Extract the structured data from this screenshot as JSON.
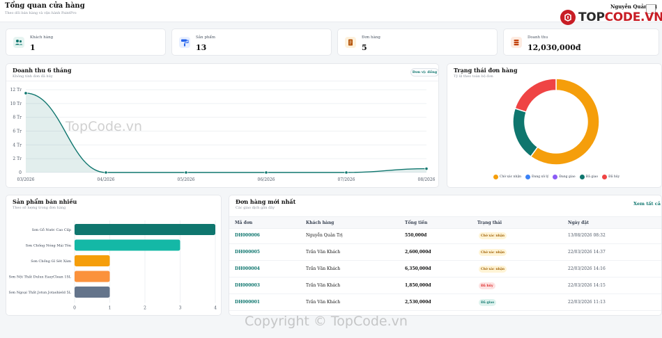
{
  "header": {
    "title": "Tổng quan cửa hàng",
    "subtitle": "Theo dõi bán hàng và vận hành PaintPro",
    "user_name": "Nguyễn Quản Trị"
  },
  "brand": {
    "prefix": "TOP",
    "suffix": "CODE.VN"
  },
  "stats": [
    {
      "label": "Khách hàng",
      "value": "1",
      "icon": "users-icon",
      "color": "#0f766e",
      "bg": "#e6f4f1"
    },
    {
      "label": "Sản phẩm",
      "value": "13",
      "icon": "paint-roller-icon",
      "color": "#2563eb",
      "bg": "#e8efff"
    },
    {
      "label": "Đơn hàng",
      "value": "5",
      "icon": "receipt-icon",
      "color": "#b45309",
      "bg": "#fdf1dc"
    },
    {
      "label": "Doanh thu",
      "value": "12,030,000đ",
      "icon": "coins-icon",
      "color": "#c2410c",
      "bg": "#fdebe1"
    }
  ],
  "revenue": {
    "title": "Doanh thu 6 tháng",
    "subtitle": "Không tính đơn đã hủy",
    "unit_button": "Đơn vị: đồng",
    "chart_data": {
      "type": "area",
      "x": [
        "03/2026",
        "04/2026",
        "05/2026",
        "06/2026",
        "07/2026",
        "08/2026"
      ],
      "values": [
        11.5,
        0,
        0,
        0,
        0,
        0.55
      ],
      "y_ticks": [
        "0",
        "2 Tr",
        "4 Tr",
        "6 Tr",
        "8 Tr",
        "10 Tr",
        "12 Tr"
      ],
      "ylim": [
        0,
        12
      ],
      "color": "#0f766e"
    }
  },
  "order_status": {
    "title": "Trạng thái đơn hàng",
    "subtitle": "Tỷ lệ theo toàn bộ đơn",
    "chart_data": {
      "type": "pie",
      "labels": [
        "Chờ xác nhận",
        "Đang xử lý",
        "Đang giao",
        "Đã giao",
        "Đã hủy"
      ],
      "values": [
        3,
        0,
        0,
        1,
        1
      ],
      "colors": [
        "#f59e0b",
        "#3b82f6",
        "#8b5cf6",
        "#0f766e",
        "#ef4444"
      ]
    }
  },
  "best_sellers": {
    "title": "Sản phẩm bán nhiều",
    "subtitle": "Theo số lượng trong đơn hàng",
    "chart_data": {
      "type": "bar",
      "orientation": "horizontal",
      "categories": [
        "Sơn Gỗ Nước Cao Cấp",
        "Sơn Chống Nóng Mái Tôn",
        "Sơn Chống Gỉ Sét Xám",
        "Sơn Nội Thất Dulux EasyClean 15L",
        "Sơn Ngoại Thất Jotun Jotashield 5L"
      ],
      "values": [
        4,
        3,
        1,
        1,
        1
      ],
      "colors": [
        "#0f766e",
        "#14b8a6",
        "#f59e0b",
        "#fb923c",
        "#64748b"
      ],
      "x_ticks": [
        "0",
        "1",
        "2",
        "3",
        "4"
      ],
      "xlim": [
        0,
        4
      ]
    }
  },
  "recent_orders": {
    "title": "Đơn hàng mới nhất",
    "subtitle": "Các giao dịch gần đây",
    "see_all": "Xem tất cả",
    "columns": [
      "Mã đơn",
      "Khách hàng",
      "Tổng tiền",
      "Trạng thái",
      "Ngày đặt"
    ],
    "rows": [
      {
        "code": "DH000006",
        "customer": "Nguyễn Quản Trị",
        "total": "550,000đ",
        "status": "Chờ xác nhận",
        "status_kind": "pending",
        "date": "13/08/2026 08:32"
      },
      {
        "code": "DH000005",
        "customer": "Trần Văn Khách",
        "total": "2,600,000đ",
        "status": "Chờ xác nhận",
        "status_kind": "pending",
        "date": "22/03/2026 14:37"
      },
      {
        "code": "DH000004",
        "customer": "Trần Văn Khách",
        "total": "6,350,000đ",
        "status": "Chờ xác nhận",
        "status_kind": "pending",
        "date": "22/03/2026 14:16"
      },
      {
        "code": "DH000003",
        "customer": "Trần Văn Khách",
        "total": "1,850,000đ",
        "status": "Đã hủy",
        "status_kind": "cancelled",
        "date": "22/03/2026 14:15"
      },
      {
        "code": "DH000001",
        "customer": "Trần Văn Khách",
        "total": "2,530,000đ",
        "status": "Đã giao",
        "status_kind": "delivered",
        "date": "22/03/2026 11:13"
      }
    ]
  },
  "watermarks": {
    "center": "TopCode.vn",
    "footer": "Copyright © TopCode.vn"
  }
}
